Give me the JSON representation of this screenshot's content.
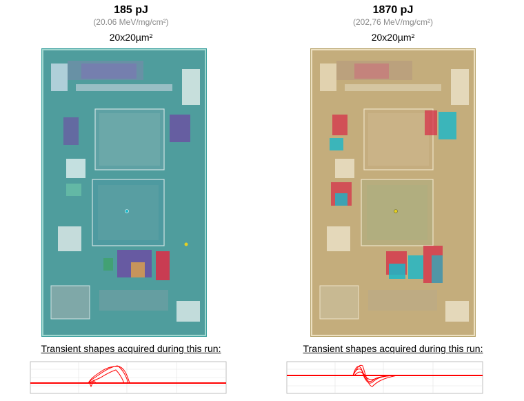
{
  "left": {
    "energy": "185 pJ",
    "let": "(20.06 MeV/mg/cm²)",
    "spot": "20x20µm²",
    "caption": "Transient shapes acquired during this run:",
    "overlay_color": "#2fa7a0"
  },
  "right": {
    "energy": "1870 pJ",
    "let": "(202,76 MeV/mg/cm²)",
    "spot": "20x20µm²",
    "caption": "Transient shapes acquired during this run:",
    "overlay_color": "#c9b079"
  },
  "colors": {
    "trace": "#ff0000",
    "hot": "#d6324a",
    "cold": "#19b7c9",
    "purple": "#6b4fa3"
  }
}
